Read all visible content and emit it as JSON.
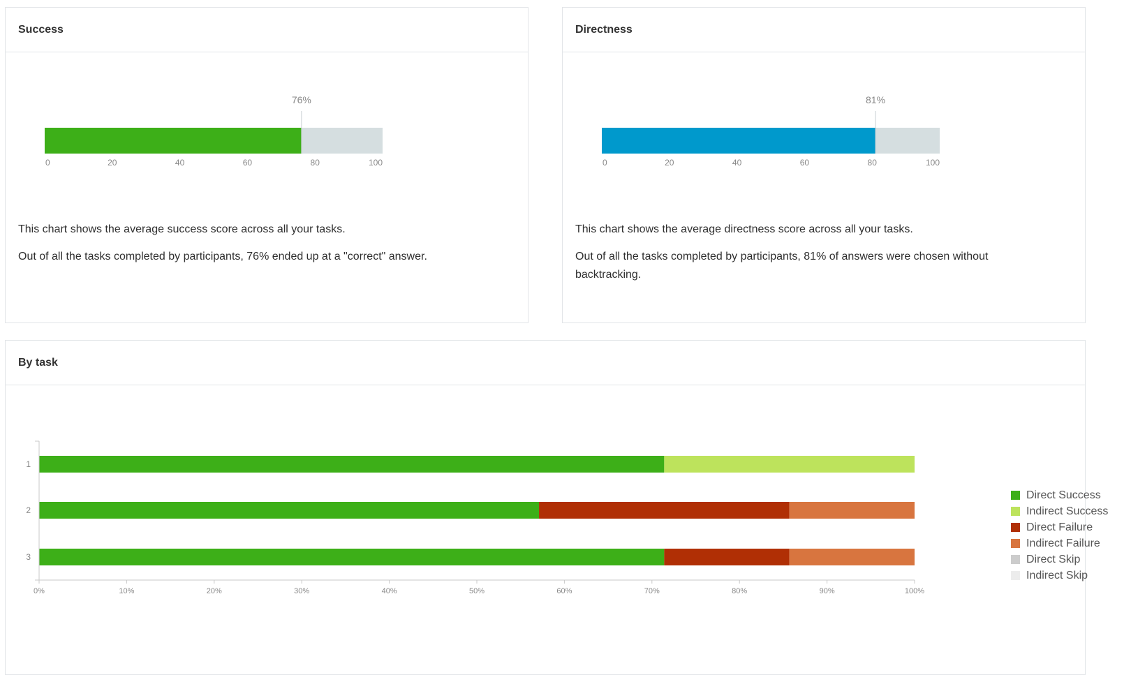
{
  "success": {
    "title": "Success",
    "description": [
      "This chart shows the average success score across all your tasks.",
      "Out of all the tasks completed by participants, 76% ended up at a \"correct\" answer."
    ]
  },
  "directness": {
    "title": "Directness",
    "description": [
      "This chart shows the average directness score across all your tasks.",
      "Out of all the tasks completed by participants, 81% of answers were chosen without backtracking."
    ]
  },
  "by_task": {
    "title": "By task"
  },
  "colors": {
    "direct_success": "#3daf18",
    "indirect_success": "#bde35c",
    "direct_failure": "#b02f05",
    "indirect_failure": "#d8753f",
    "direct_skip": "#cccccc",
    "indirect_skip": "#ececec",
    "directness_bar": "#0099cc",
    "remainder": "#d5dee0",
    "axis_text": "#888888"
  },
  "chart_data": [
    {
      "type": "bar",
      "orientation": "horizontal",
      "title": "Success",
      "value": 76,
      "value_label": "76%",
      "xlim": [
        0,
        100
      ],
      "ticks": [
        0,
        20,
        40,
        60,
        80,
        100
      ],
      "tick_labels": [
        "0",
        "20",
        "40",
        "60",
        "80",
        "100"
      ]
    },
    {
      "type": "bar",
      "orientation": "horizontal",
      "title": "Directness",
      "value": 81,
      "value_label": "81%",
      "xlim": [
        0,
        100
      ],
      "ticks": [
        0,
        20,
        40,
        60,
        80,
        100
      ],
      "tick_labels": [
        "0",
        "20",
        "40",
        "60",
        "80",
        "100"
      ]
    },
    {
      "type": "bar",
      "orientation": "horizontal",
      "stacked": true,
      "normalized": true,
      "title": "By task",
      "categories": [
        "1",
        "2",
        "3"
      ],
      "xlim": [
        0,
        100
      ],
      "ticks": [
        0,
        10,
        20,
        30,
        40,
        50,
        60,
        70,
        80,
        90,
        100
      ],
      "tick_labels": [
        "0%",
        "10%",
        "20%",
        "30%",
        "40%",
        "50%",
        "60%",
        "70%",
        "80%",
        "90%",
        "100%"
      ],
      "legend_position": "right",
      "series": [
        {
          "name": "Direct Success",
          "values": [
            71.4,
            57.1,
            71.4
          ],
          "color": "#3daf18"
        },
        {
          "name": "Indirect Success",
          "values": [
            28.6,
            0,
            0
          ],
          "color": "#bde35c"
        },
        {
          "name": "Direct Failure",
          "values": [
            0,
            28.6,
            14.3
          ],
          "color": "#b02f05"
        },
        {
          "name": "Indirect Failure",
          "values": [
            0,
            14.3,
            14.3
          ],
          "color": "#d8753f"
        },
        {
          "name": "Direct Skip",
          "values": [
            0,
            0,
            0
          ],
          "color": "#cccccc"
        },
        {
          "name": "Indirect Skip",
          "values": [
            0,
            0,
            0
          ],
          "color": "#ececec"
        }
      ]
    }
  ]
}
